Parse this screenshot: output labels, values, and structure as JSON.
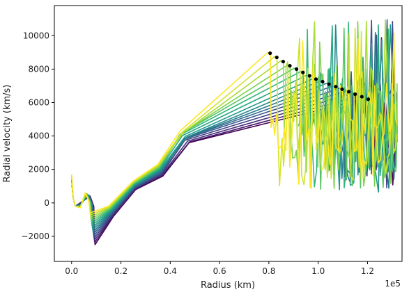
{
  "chart_data": {
    "type": "line",
    "title": "",
    "xlabel": "Radius (km)",
    "ylabel": "Radial velocity (km/s)",
    "x_offset_text": "1e5",
    "xlim": [
      -0.07,
      1.34
    ],
    "ylim": [
      -3500,
      11800
    ],
    "xticks": [
      0.0,
      0.2,
      0.4,
      0.6,
      0.8,
      1.0,
      1.2
    ],
    "xtick_labels": [
      "0.0",
      "0.2",
      "0.4",
      "0.6",
      "0.8",
      "1.0",
      "1.2"
    ],
    "yticks": [
      -2000,
      0,
      2000,
      4000,
      6000,
      8000,
      10000
    ],
    "ytick_labels": [
      "−2000",
      "0",
      "2000",
      "4000",
      "6000",
      "8000",
      "10000"
    ],
    "colormap": "viridis",
    "colormap_stops": [
      "#440154",
      "#482878",
      "#3e4989",
      "#31688e",
      "#26828e",
      "#1f9e89",
      "#35b779",
      "#6ece58",
      "#b5de2b",
      "#fde725"
    ],
    "n_curves": 16,
    "grid": false,
    "legend": "none",
    "marker_color": "#000000",
    "shock_points": {
      "x": [
        0.805,
        0.832,
        0.858,
        0.885,
        0.912,
        0.938,
        0.965,
        0.991,
        1.018,
        1.044,
        1.071,
        1.097,
        1.124,
        1.15,
        1.177,
        1.203
      ],
      "y": [
        8950,
        8700,
        8450,
        8200,
        8000,
        7800,
        7600,
        7400,
        7250,
        7100,
        6950,
        6800,
        6650,
        6500,
        6350,
        6200
      ]
    }
  }
}
